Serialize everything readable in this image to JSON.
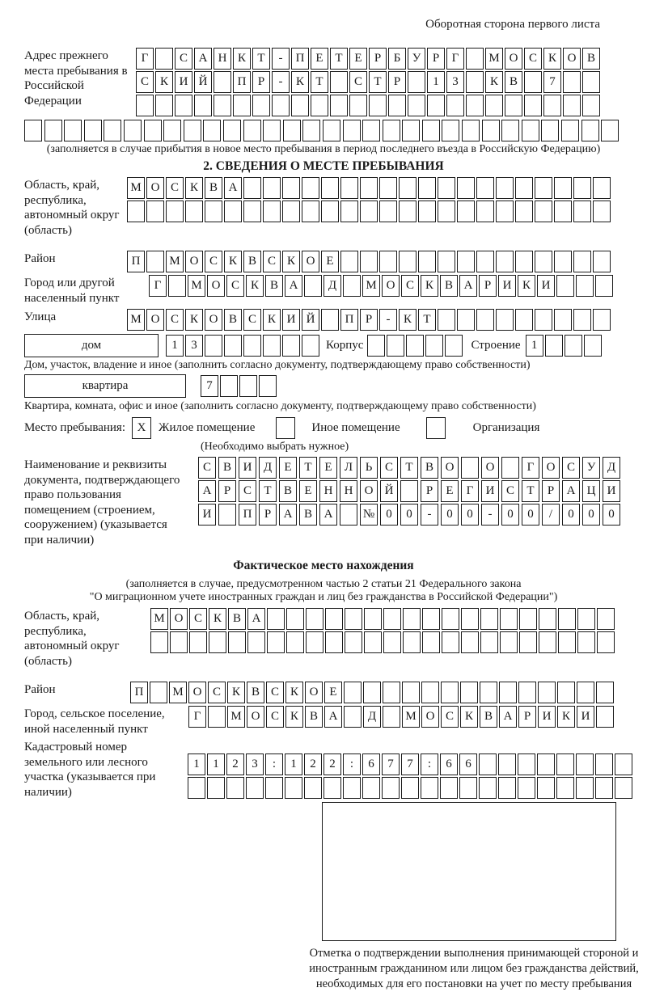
{
  "page": {
    "header_note": "Оборотная сторона первого листа"
  },
  "colors": {
    "ink": "#1a1a1a",
    "background": "#ffffff"
  },
  "prev_address": {
    "label": "Адрес прежнего места пребывания в Российской Федерации",
    "row1": "Г САНКТ-ПЕТЕРБУРГ МОСКОВ",
    "row2": "СКИЙ ПР-КТ СТР 13 КВ 7",
    "row3": "",
    "row4": "",
    "note": "(заполняется в случае прибытия в новое место пребывания в период последнего въезда в Российскую Федерацию)"
  },
  "section2": {
    "title": "2. СВЕДЕНИЯ О МЕСТЕ ПРЕБЫВАНИЯ",
    "region_label": "Область, край, республика, автономный округ (область)",
    "region_row1": "МОСКВА",
    "region_row2": "",
    "district_label": "Район",
    "district_row": "П МОСКВСКОЕ",
    "city_label": "Город или другой населенный пункт",
    "city_row": "Г МОСКВА Д МОСКВАРИКИ",
    "street_label": "Улица",
    "street_row": "МОСКОВСКИЙ ПР-КТ",
    "house_box_label": "дом",
    "house_row": "13",
    "korpus_label": "Корпус",
    "korpus_row": "",
    "stroenie_label": "Строение",
    "stroenie_row": "1",
    "house_note": "Дом, участок, владение и иное (заполнить согласно документу, подтверждающему право собственности)",
    "apartment_box_label": "квартира",
    "apartment_row": "7",
    "apartment_note": "Квартира, комната, офис и иное (заполнить согласно документу, подтверждающему право собственности)",
    "stay_label": "Место пребывания:",
    "stay_options": [
      {
        "mark": "X",
        "label": "Жилое помещение"
      },
      {
        "mark": "",
        "label": "Иное помещение"
      },
      {
        "mark": "",
        "label": "Организация"
      }
    ],
    "stay_note": "(Необходимо выбрать нужное)",
    "doc_label": "Наименование и реквизиты документа, подтверждающего право пользования помещением (строением, сооружением) (указывается при наличии)",
    "doc_row1": "СВИДЕТЕЛЬСТВО О ГОСУД",
    "doc_row2": "АРСТВЕННОЙ РЕГИСТРАЦИ",
    "doc_row3": "И ПРАВА №00-00-00/000"
  },
  "actual_location": {
    "title": "Фактическое место нахождения",
    "note_line1": "(заполняется в случае, предусмотренном частью 2 статьи 21 Федерального закона",
    "note_line2": "\"О миграционном учете иностранных граждан и лиц без гражданства в Российской Федерации\")",
    "region_label": "Область, край, республика, автономный округ (область)",
    "region_row1": "МОСКВА",
    "region_row2": "",
    "district_label": "Район",
    "district_row": "П МОСКВСКОЕ",
    "city_label": "Город, сельское поселение, иной населенный пункт",
    "city_row": "Г МОСКВА Д МОСКВАРИКИ",
    "cadastre_label": "Кадастровый номер земельного или лесного участка (указывается при наличии)",
    "cadastre_row1": "1123:122:677:66",
    "cadastre_row2": ""
  },
  "stamp": {
    "caption": "Отметка о подтверждении выполнения принимающей стороной и иностранным гражданином или лицом без гражданства действий, необходимых для его постановки на учет по месту пребывания"
  }
}
